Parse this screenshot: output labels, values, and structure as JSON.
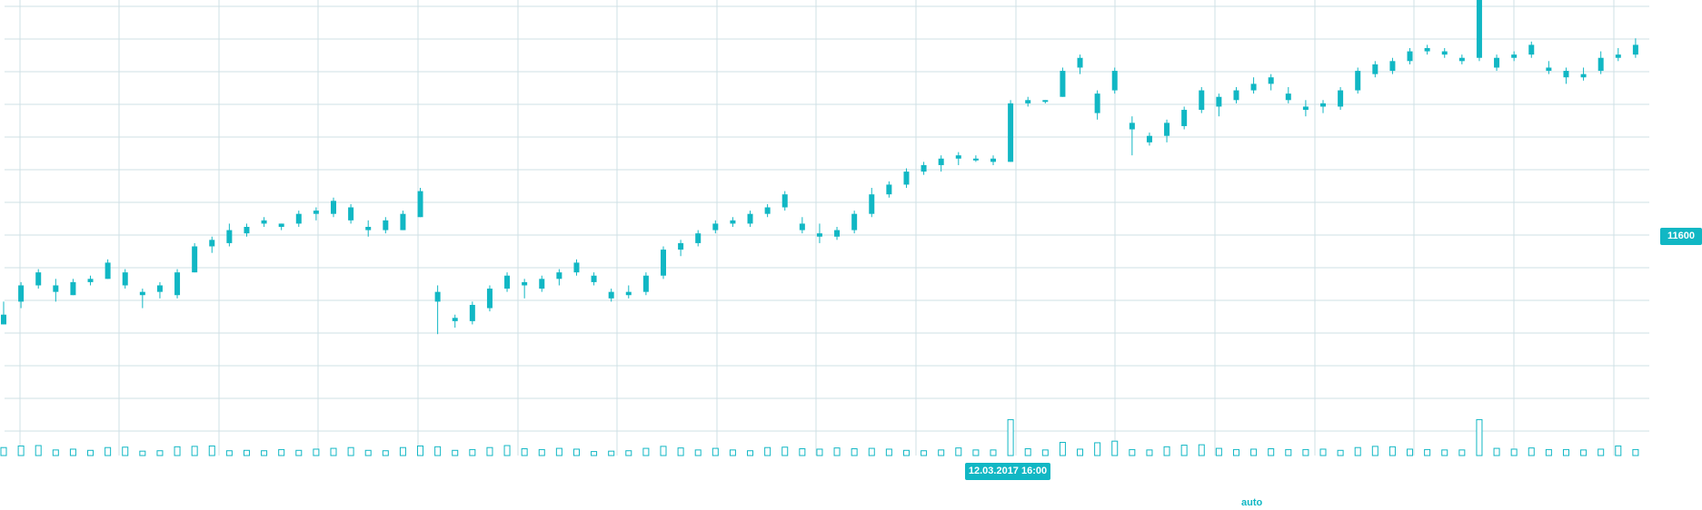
{
  "colors": {
    "accent": "#11b7c4",
    "grid": "#cfe0e6",
    "background": "#ffffff"
  },
  "crosshair": {
    "price_label": "11600",
    "time_label": "12.03.2017 16:00"
  },
  "scale_mode": "auto",
  "chart_data": {
    "type": "candlestick",
    "series": [
      {
        "name": "",
        "kind": "candlestick",
        "ohlc": [
          [
            0,
            11480,
            11500,
            11465,
            11465
          ],
          [
            1,
            11500,
            11530,
            11490,
            11525
          ],
          [
            2,
            11525,
            11550,
            11520,
            11545
          ],
          [
            3,
            11525,
            11535,
            11500,
            11515
          ],
          [
            4,
            11510,
            11535,
            11510,
            11530
          ],
          [
            5,
            11530,
            11540,
            11525,
            11535
          ],
          [
            6,
            11535,
            11565,
            11535,
            11560
          ],
          [
            7,
            11545,
            11550,
            11520,
            11525
          ],
          [
            8,
            11515,
            11520,
            11490,
            11510
          ],
          [
            9,
            11515,
            11530,
            11505,
            11525
          ],
          [
            10,
            11510,
            11550,
            11505,
            11545
          ],
          [
            11,
            11545,
            11590,
            11545,
            11585
          ],
          [
            12,
            11585,
            11600,
            11575,
            11595
          ],
          [
            13,
            11590,
            11620,
            11585,
            11610
          ],
          [
            14,
            11605,
            11620,
            11600,
            11615
          ],
          [
            15,
            11620,
            11630,
            11615,
            11625
          ],
          [
            16,
            11615,
            11620,
            11610,
            11620
          ],
          [
            17,
            11620,
            11640,
            11615,
            11635
          ],
          [
            18,
            11635,
            11645,
            11625,
            11640
          ],
          [
            19,
            11635,
            11660,
            11630,
            11655
          ],
          [
            20,
            11645,
            11650,
            11620,
            11625
          ],
          [
            21,
            11615,
            11625,
            11600,
            11610
          ],
          [
            22,
            11610,
            11630,
            11605,
            11625
          ],
          [
            23,
            11610,
            11640,
            11610,
            11635
          ],
          [
            24,
            11630,
            11675,
            11630,
            11670
          ],
          [
            25,
            11515,
            11525,
            11450,
            11500
          ],
          [
            26,
            11475,
            11480,
            11460,
            11470
          ],
          [
            27,
            11470,
            11500,
            11465,
            11495
          ],
          [
            28,
            11490,
            11525,
            11485,
            11520
          ],
          [
            29,
            11520,
            11545,
            11515,
            11540
          ],
          [
            30,
            11530,
            11535,
            11505,
            11525
          ],
          [
            31,
            11520,
            11540,
            11515,
            11535
          ],
          [
            32,
            11535,
            11550,
            11525,
            11545
          ],
          [
            33,
            11545,
            11565,
            11540,
            11560
          ],
          [
            34,
            11540,
            11545,
            11525,
            11530
          ],
          [
            35,
            11515,
            11520,
            11500,
            11505
          ],
          [
            36,
            11510,
            11525,
            11505,
            11515
          ],
          [
            37,
            11515,
            11545,
            11510,
            11540
          ],
          [
            38,
            11540,
            11585,
            11535,
            11580
          ],
          [
            39,
            11580,
            11595,
            11570,
            11590
          ],
          [
            40,
            11590,
            11610,
            11585,
            11605
          ],
          [
            41,
            11610,
            11625,
            11605,
            11620
          ],
          [
            42,
            11620,
            11630,
            11615,
            11625
          ],
          [
            43,
            11620,
            11640,
            11615,
            11635
          ],
          [
            44,
            11635,
            11650,
            11630,
            11645
          ],
          [
            45,
            11645,
            11670,
            11640,
            11665
          ],
          [
            46,
            11620,
            11630,
            11605,
            11610
          ],
          [
            47,
            11605,
            11620,
            11590,
            11600
          ],
          [
            48,
            11600,
            11615,
            11595,
            11610
          ],
          [
            49,
            11610,
            11640,
            11605,
            11635
          ],
          [
            50,
            11635,
            11675,
            11630,
            11665
          ],
          [
            51,
            11665,
            11685,
            11660,
            11680
          ],
          [
            52,
            11680,
            11705,
            11675,
            11700
          ],
          [
            53,
            11700,
            11715,
            11695,
            11710
          ],
          [
            54,
            11710,
            11725,
            11700,
            11720
          ],
          [
            55,
            11720,
            11730,
            11710,
            11725
          ],
          [
            56,
            11720,
            11725,
            11715,
            11720
          ],
          [
            57,
            11720,
            11725,
            11710,
            11715
          ],
          [
            58,
            11715,
            11810,
            11715,
            11805
          ],
          [
            59,
            11805,
            11815,
            11800,
            11810
          ],
          [
            60,
            11810,
            11810,
            11805,
            11810
          ],
          [
            61,
            11815,
            11860,
            11815,
            11855
          ],
          [
            62,
            11860,
            11880,
            11850,
            11875
          ],
          [
            63,
            11820,
            11825,
            11780,
            11790
          ],
          [
            64,
            11825,
            11860,
            11820,
            11855
          ],
          [
            65,
            11775,
            11785,
            11725,
            11765
          ],
          [
            66,
            11745,
            11760,
            11740,
            11755
          ],
          [
            67,
            11755,
            11780,
            11745,
            11775
          ],
          [
            68,
            11770,
            11800,
            11765,
            11795
          ],
          [
            69,
            11795,
            11830,
            11790,
            11825
          ],
          [
            70,
            11815,
            11820,
            11785,
            11800
          ],
          [
            71,
            11810,
            11830,
            11805,
            11825
          ],
          [
            72,
            11825,
            11845,
            11820,
            11835
          ],
          [
            73,
            11835,
            11850,
            11825,
            11845
          ],
          [
            74,
            11820,
            11830,
            11805,
            11810
          ],
          [
            75,
            11800,
            11810,
            11785,
            11795
          ],
          [
            76,
            11800,
            11810,
            11790,
            11805
          ],
          [
            77,
            11800,
            11830,
            11795,
            11825
          ],
          [
            78,
            11825,
            11860,
            11820,
            11855
          ],
          [
            79,
            11850,
            11870,
            11845,
            11865
          ],
          [
            80,
            11855,
            11875,
            11850,
            11870
          ],
          [
            81,
            11870,
            11890,
            11865,
            11885
          ],
          [
            82,
            11885,
            11895,
            11880,
            11890
          ],
          [
            83,
            11880,
            11890,
            11875,
            11885
          ],
          [
            84,
            11875,
            11880,
            11865,
            11870
          ],
          [
            85,
            11875,
            11980,
            11870,
            11970
          ],
          [
            86,
            11860,
            11880,
            11855,
            11875
          ],
          [
            87,
            11875,
            11885,
            11870,
            11880
          ],
          [
            88,
            11880,
            11900,
            11875,
            11895
          ],
          [
            89,
            11860,
            11870,
            11850,
            11855
          ],
          [
            90,
            11855,
            11860,
            11835,
            11845
          ],
          [
            91,
            11845,
            11860,
            11840,
            11850
          ],
          [
            92,
            11855,
            11885,
            11850,
            11875
          ],
          [
            93,
            11875,
            11890,
            11870,
            11880
          ],
          [
            94,
            11880,
            11905,
            11875,
            11895
          ]
        ]
      },
      {
        "name": "",
        "kind": "volume",
        "values": [
          2,
          2.4,
          2.5,
          1.4,
          1.6,
          1.3,
          2,
          2.1,
          1.1,
          1.2,
          2.2,
          2.3,
          2.4,
          1.2,
          1.3,
          1.2,
          1.5,
          1.3,
          1.6,
          1.8,
          2,
          1.3,
          1.2,
          2,
          2.4,
          2.2,
          1.3,
          1.5,
          2,
          2.5,
          1.7,
          1.5,
          1.8,
          1.6,
          1,
          1.1,
          1.2,
          1.8,
          2.3,
          1.9,
          1.4,
          1.8,
          1.4,
          1.2,
          2,
          2.1,
          1.7,
          1.6,
          1.9,
          1.7,
          1.8,
          1.6,
          1.3,
          1.2,
          1.4,
          1.9,
          1.4,
          1.4,
          9,
          1.7,
          1.4,
          3.3,
          1.6,
          3.2,
          3.6,
          1.5,
          1.4,
          2.2,
          2.6,
          2.7,
          1.8,
          1.5,
          1.6,
          1.7,
          1.5,
          1.5,
          1.6,
          1.3,
          2,
          2.3,
          2.2,
          1.6,
          1.5,
          1.4,
          1.4,
          9,
          1.8,
          1.6,
          1.9,
          1.5,
          1.5,
          1.4,
          1.6,
          2.4,
          1.5
        ]
      }
    ],
    "x": {
      "interval": "1 hour",
      "crosshair_time": "12.03.2017 16:00"
    },
    "y": {
      "ylim": [
        11280,
        11950
      ]
    },
    "grid": true,
    "price_axis_position": "right"
  }
}
